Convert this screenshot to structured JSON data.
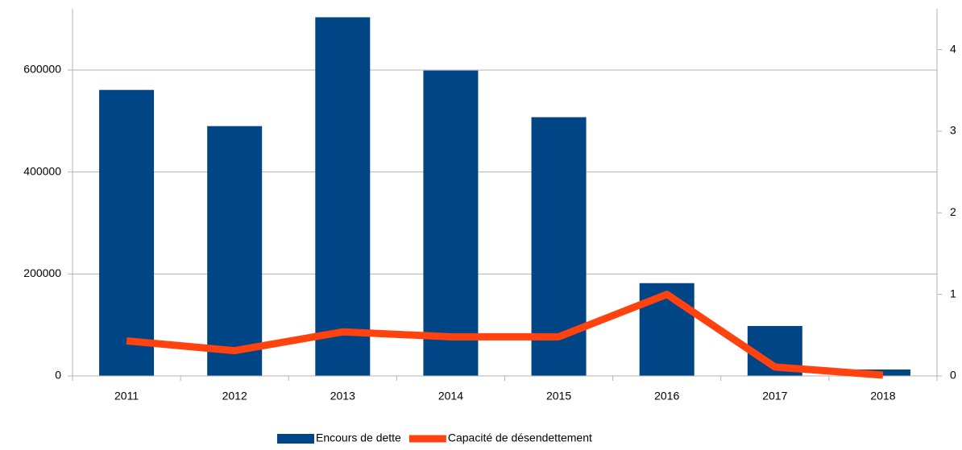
{
  "chart_data": {
    "type": "bar",
    "categories": [
      "2011",
      "2012",
      "2013",
      "2014",
      "2015",
      "2016",
      "2017",
      "2018"
    ],
    "series": [
      {
        "name": "Encours de dette",
        "type": "bar",
        "color": "#004586",
        "values": [
          561000,
          490000,
          703500,
          599000,
          507500,
          182000,
          98000,
          12600
        ]
      },
      {
        "name": "Capacité de désendettement",
        "type": "line",
        "axis": "y2",
        "color": "#ff420e",
        "values": [
          0.43,
          0.31,
          0.54,
          0.48,
          0.48,
          1.0,
          0.11,
          0.01
        ]
      }
    ],
    "ylim": [
      0,
      720000
    ],
    "yticks": [
      0,
      200000,
      400000,
      600000
    ],
    "y2lim": [
      0,
      4.5
    ],
    "y2ticks": [
      0,
      1,
      2,
      3,
      4
    ],
    "grid": true,
    "legend": "bottom"
  }
}
